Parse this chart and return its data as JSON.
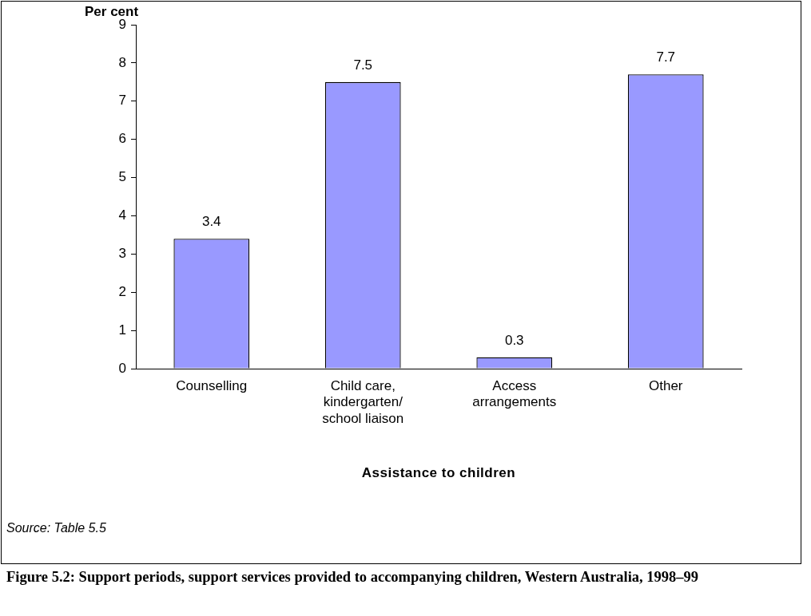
{
  "chart_data": {
    "type": "bar",
    "title": "Figure 5.2: Support periods, support services provided to accompanying children, Western Australia, 1998–99",
    "ylabel": "Per cent",
    "xlabel": "Assistance to children",
    "categories": [
      "Counselling",
      "Child care, kindergarten/ school liaison",
      "Access arrangements",
      "Other"
    ],
    "values": [
      3.4,
      7.5,
      0.3,
      7.7
    ],
    "color": "#9999ff",
    "ylim": [
      0,
      9
    ],
    "yticks": [
      0,
      1,
      2,
      3,
      4,
      5,
      6,
      7,
      8,
      9
    ],
    "grid": false,
    "legend": false,
    "data_labels": true,
    "annotations": [
      "Source: Table 5.5"
    ]
  }
}
